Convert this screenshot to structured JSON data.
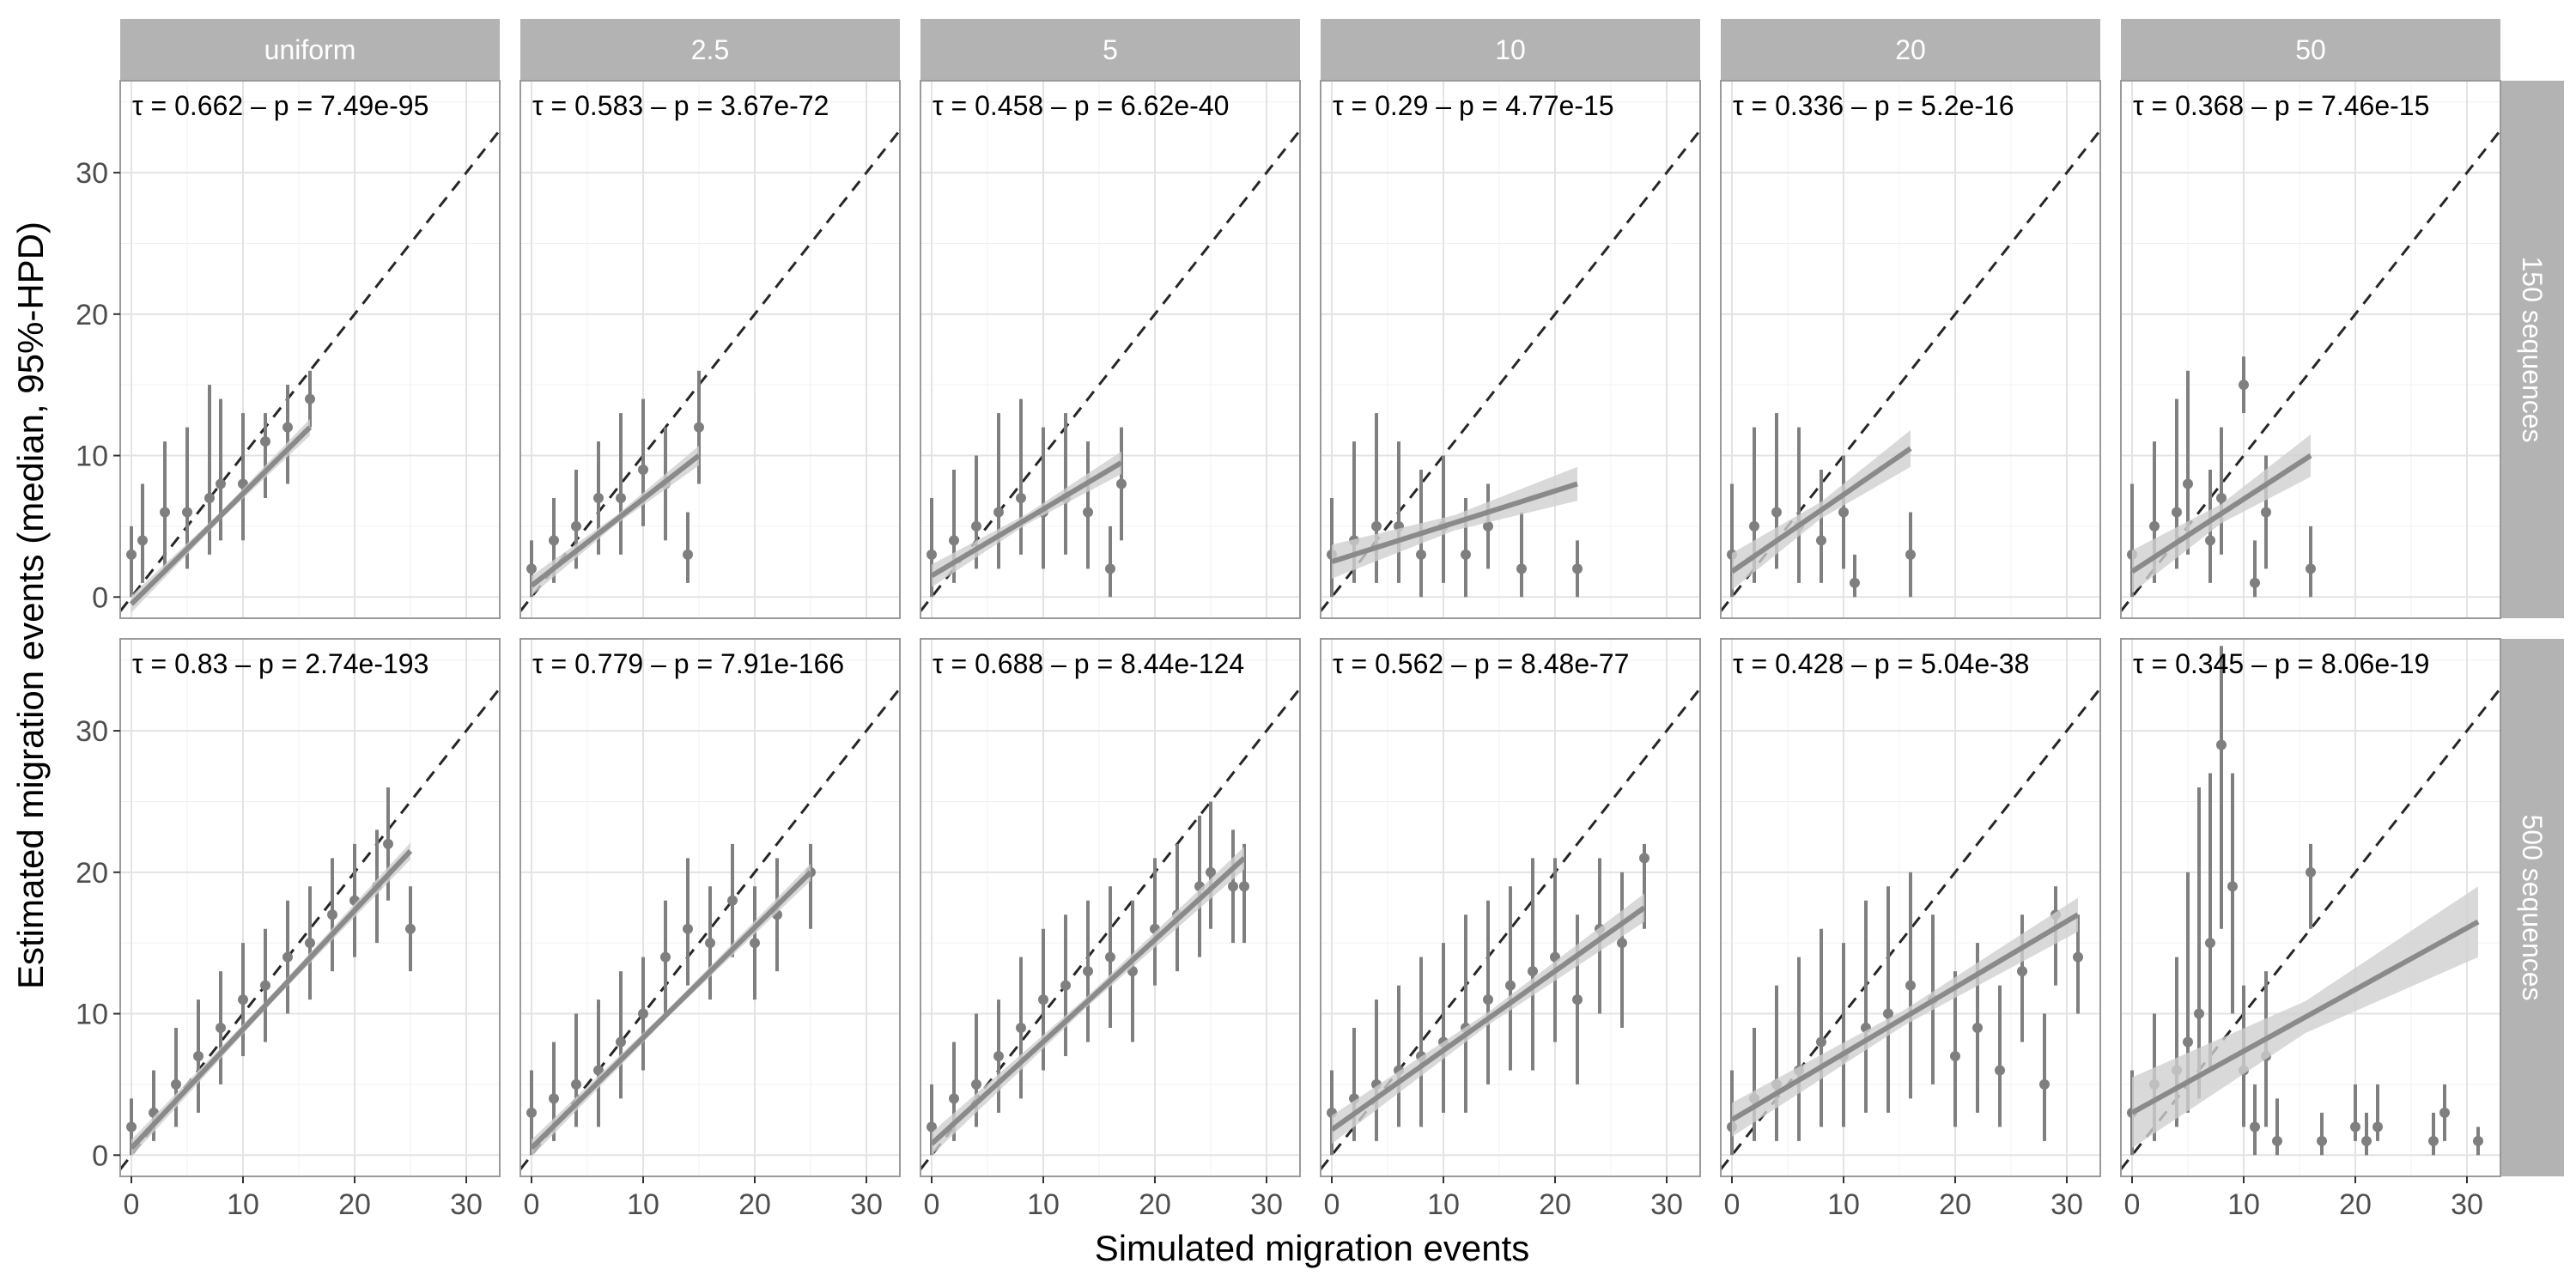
{
  "chart_data": {
    "type": "scatter",
    "xlabel": "Simulated migration events",
    "ylabel": "Estimated migration events (median, 95%-HPD)",
    "xlim": [
      -1,
      33
    ],
    "ylim": [
      -1.5,
      36.5
    ],
    "x_ticks": [
      0,
      10,
      20,
      30
    ],
    "y_ticks": [
      0,
      10,
      20,
      30
    ],
    "grid": true,
    "identity_line": "dashed",
    "columns": [
      "uniform",
      "2.5",
      "5",
      "10",
      "20",
      "50"
    ],
    "rows": [
      "150 sequences",
      "500 sequences"
    ],
    "panels": [
      {
        "col": "uniform",
        "row": "150 sequences",
        "annotation": "τ =  0.662 – p =  7.49e-95",
        "xmax": 16,
        "fit": [
          -0.5,
          12.0
        ],
        "band": 0.6,
        "points": [
          [
            0,
            3,
            0,
            5
          ],
          [
            1,
            4,
            1,
            8
          ],
          [
            3,
            6,
            2,
            11
          ],
          [
            5,
            6,
            2,
            12
          ],
          [
            7,
            7,
            3,
            15
          ],
          [
            8,
            8,
            4,
            14
          ],
          [
            10,
            8,
            4,
            13
          ],
          [
            12,
            11,
            7,
            13
          ],
          [
            14,
            12,
            8,
            15
          ],
          [
            16,
            14,
            12,
            16
          ]
        ]
      },
      {
        "col": "2.5",
        "row": "150 sequences",
        "annotation": "τ =  0.583 – p =  3.67e-72",
        "xmax": 15,
        "fit": [
          0.8,
          10.0
        ],
        "band": 0.7,
        "points": [
          [
            0,
            2,
            0,
            4
          ],
          [
            2,
            4,
            1,
            7
          ],
          [
            4,
            5,
            2,
            9
          ],
          [
            6,
            7,
            3,
            11
          ],
          [
            8,
            7,
            3,
            13
          ],
          [
            10,
            9,
            5,
            14
          ],
          [
            12,
            8,
            4,
            12
          ],
          [
            14,
            3,
            1,
            6
          ],
          [
            15,
            12,
            8,
            16
          ]
        ]
      },
      {
        "col": "5",
        "row": "150 sequences",
        "annotation": "τ =  0.458 – p =  6.62e-40",
        "xmax": 17,
        "fit": [
          1.5,
          9.5
        ],
        "band": 0.8,
        "points": [
          [
            0,
            3,
            0,
            7
          ],
          [
            2,
            4,
            1,
            9
          ],
          [
            4,
            5,
            2,
            10
          ],
          [
            6,
            6,
            2,
            13
          ],
          [
            8,
            7,
            3,
            14
          ],
          [
            10,
            6,
            2,
            12
          ],
          [
            12,
            7,
            3,
            13
          ],
          [
            14,
            6,
            2,
            11
          ],
          [
            16,
            2,
            0,
            5
          ],
          [
            17,
            8,
            4,
            12
          ]
        ]
      },
      {
        "col": "10",
        "row": "150 sequences",
        "annotation": "τ =  0.29 – p =  4.77e-15",
        "xmax": 22,
        "fit": [
          2.5,
          8.0
        ],
        "band": 1.2,
        "points": [
          [
            0,
            3,
            0,
            7
          ],
          [
            2,
            4,
            1,
            11
          ],
          [
            4,
            5,
            1,
            13
          ],
          [
            6,
            5,
            1,
            11
          ],
          [
            8,
            3,
            0,
            9
          ],
          [
            10,
            5,
            1,
            10
          ],
          [
            12,
            3,
            0,
            7
          ],
          [
            14,
            5,
            2,
            8
          ],
          [
            17,
            2,
            0,
            6
          ],
          [
            22,
            2,
            0,
            4
          ]
        ]
      },
      {
        "col": "20",
        "row": "150 sequences",
        "annotation": "τ =  0.336 – p =  5.2e-16",
        "xmax": 16,
        "fit": [
          1.8,
          10.5
        ],
        "band": 1.3,
        "points": [
          [
            0,
            3,
            0,
            8
          ],
          [
            2,
            5,
            1,
            12
          ],
          [
            4,
            6,
            2,
            13
          ],
          [
            6,
            5,
            1,
            12
          ],
          [
            8,
            4,
            1,
            9
          ],
          [
            10,
            6,
            2,
            10
          ],
          [
            11,
            1,
            0,
            3
          ],
          [
            16,
            3,
            0,
            6
          ]
        ]
      },
      {
        "col": "50",
        "row": "150 sequences",
        "annotation": "τ =  0.368 – p =  7.46e-15",
        "xmax": 16,
        "fit": [
          1.8,
          10.0
        ],
        "band": 1.5,
        "points": [
          [
            0,
            3,
            0,
            8
          ],
          [
            2,
            5,
            1,
            11
          ],
          [
            4,
            6,
            2,
            14
          ],
          [
            5,
            8,
            3,
            16
          ],
          [
            7,
            4,
            1,
            9
          ],
          [
            8,
            7,
            3,
            12
          ],
          [
            10,
            15,
            13,
            17
          ],
          [
            11,
            1,
            0,
            4
          ],
          [
            12,
            6,
            2,
            10
          ],
          [
            16,
            2,
            0,
            5
          ]
        ]
      },
      {
        "col": "uniform",
        "row": "500 sequences",
        "annotation": "τ =  0.83 – p =  2.74e-193",
        "xmax": 25,
        "fit": [
          0.5,
          21.5
        ],
        "band": 0.6,
        "points": [
          [
            0,
            2,
            0,
            4
          ],
          [
            2,
            3,
            1,
            6
          ],
          [
            4,
            5,
            2,
            9
          ],
          [
            6,
            7,
            3,
            11
          ],
          [
            8,
            9,
            5,
            13
          ],
          [
            10,
            11,
            7,
            15
          ],
          [
            12,
            12,
            8,
            16
          ],
          [
            14,
            14,
            10,
            18
          ],
          [
            16,
            15,
            11,
            19
          ],
          [
            18,
            17,
            13,
            21
          ],
          [
            20,
            18,
            14,
            22
          ],
          [
            22,
            19,
            15,
            23
          ],
          [
            23,
            22,
            18,
            26
          ],
          [
            25,
            16,
            13,
            19
          ]
        ]
      },
      {
        "col": "2.5",
        "row": "500 sequences",
        "annotation": "τ =  0.779 – p =  7.91e-166",
        "xmax": 25,
        "fit": [
          0.5,
          20.0
        ],
        "band": 0.6,
        "points": [
          [
            0,
            3,
            0,
            6
          ],
          [
            2,
            4,
            1,
            8
          ],
          [
            4,
            5,
            2,
            10
          ],
          [
            6,
            6,
            2,
            11
          ],
          [
            8,
            8,
            4,
            13
          ],
          [
            10,
            10,
            6,
            14
          ],
          [
            12,
            14,
            10,
            18
          ],
          [
            14,
            16,
            12,
            21
          ],
          [
            16,
            15,
            11,
            19
          ],
          [
            18,
            18,
            14,
            22
          ],
          [
            20,
            15,
            11,
            19
          ],
          [
            22,
            17,
            13,
            21
          ],
          [
            25,
            20,
            16,
            22
          ]
        ]
      },
      {
        "col": "5",
        "row": "500 sequences",
        "annotation": "τ =  0.688 – p =  8.44e-124",
        "xmax": 28,
        "fit": [
          0.8,
          21.0
        ],
        "band": 0.8,
        "points": [
          [
            0,
            2,
            0,
            5
          ],
          [
            2,
            4,
            1,
            8
          ],
          [
            4,
            5,
            2,
            10
          ],
          [
            6,
            7,
            3,
            11
          ],
          [
            8,
            9,
            4,
            14
          ],
          [
            10,
            11,
            6,
            16
          ],
          [
            12,
            12,
            7,
            17
          ],
          [
            14,
            13,
            8,
            18
          ],
          [
            16,
            14,
            9,
            19
          ],
          [
            18,
            13,
            8,
            18
          ],
          [
            20,
            16,
            12,
            21
          ],
          [
            22,
            17,
            13,
            22
          ],
          [
            24,
            19,
            14,
            24
          ],
          [
            25,
            20,
            16,
            25
          ],
          [
            27,
            19,
            15,
            23
          ],
          [
            28,
            19,
            15,
            22
          ]
        ]
      },
      {
        "col": "10",
        "row": "500 sequences",
        "annotation": "τ =  0.562 – p =  8.48e-77",
        "xmax": 28,
        "fit": [
          1.8,
          17.5
        ],
        "band": 1.0,
        "points": [
          [
            0,
            3,
            0,
            6
          ],
          [
            2,
            4,
            1,
            9
          ],
          [
            4,
            5,
            1,
            11
          ],
          [
            6,
            6,
            2,
            12
          ],
          [
            8,
            7,
            2,
            14
          ],
          [
            10,
            8,
            3,
            15
          ],
          [
            12,
            9,
            3,
            17
          ],
          [
            14,
            11,
            5,
            18
          ],
          [
            16,
            12,
            6,
            19
          ],
          [
            18,
            13,
            6,
            21
          ],
          [
            20,
            14,
            8,
            21
          ],
          [
            22,
            11,
            5,
            17
          ],
          [
            24,
            16,
            10,
            21
          ],
          [
            26,
            15,
            9,
            20
          ],
          [
            28,
            21,
            16,
            22
          ]
        ]
      },
      {
        "col": "20",
        "row": "500 sequences",
        "annotation": "τ =  0.428 – p =  5.04e-38",
        "xmax": 31,
        "fit": [
          2.5,
          17.0
        ],
        "band": 1.2,
        "points": [
          [
            0,
            2,
            0,
            6
          ],
          [
            2,
            4,
            1,
            9
          ],
          [
            4,
            5,
            1,
            12
          ],
          [
            6,
            6,
            1,
            14
          ],
          [
            8,
            8,
            2,
            16
          ],
          [
            10,
            7,
            2,
            15
          ],
          [
            12,
            9,
            3,
            18
          ],
          [
            14,
            10,
            3,
            19
          ],
          [
            16,
            12,
            4,
            20
          ],
          [
            18,
            11,
            5,
            17
          ],
          [
            20,
            7,
            2,
            13
          ],
          [
            22,
            9,
            3,
            15
          ],
          [
            24,
            6,
            2,
            12
          ],
          [
            26,
            13,
            8,
            17
          ],
          [
            28,
            5,
            1,
            10
          ],
          [
            29,
            17,
            12,
            19
          ],
          [
            31,
            14,
            10,
            17
          ]
        ]
      },
      {
        "col": "50",
        "row": "500 sequences",
        "annotation": "τ =  0.345 – p =  8.06e-19",
        "xmax": 31,
        "fit": [
          3.0,
          16.5
        ],
        "band": 2.5,
        "points": [
          [
            0,
            3,
            0,
            6
          ],
          [
            2,
            5,
            1,
            10
          ],
          [
            4,
            6,
            2,
            14
          ],
          [
            5,
            8,
            3,
            20
          ],
          [
            6,
            10,
            4,
            26
          ],
          [
            7,
            15,
            6,
            27
          ],
          [
            8,
            29,
            16,
            36
          ],
          [
            9,
            19,
            10,
            27
          ],
          [
            10,
            6,
            2,
            12
          ],
          [
            11,
            2,
            0,
            5
          ],
          [
            12,
            7,
            2,
            13
          ],
          [
            13,
            1,
            0,
            4
          ],
          [
            16,
            20,
            16,
            22
          ],
          [
            17,
            1,
            0,
            3
          ],
          [
            20,
            2,
            1,
            5
          ],
          [
            21,
            1,
            0,
            3
          ],
          [
            22,
            2,
            1,
            5
          ],
          [
            27,
            1,
            0,
            3
          ],
          [
            28,
            3,
            1,
            5
          ],
          [
            31,
            1,
            0,
            2
          ]
        ]
      }
    ]
  }
}
